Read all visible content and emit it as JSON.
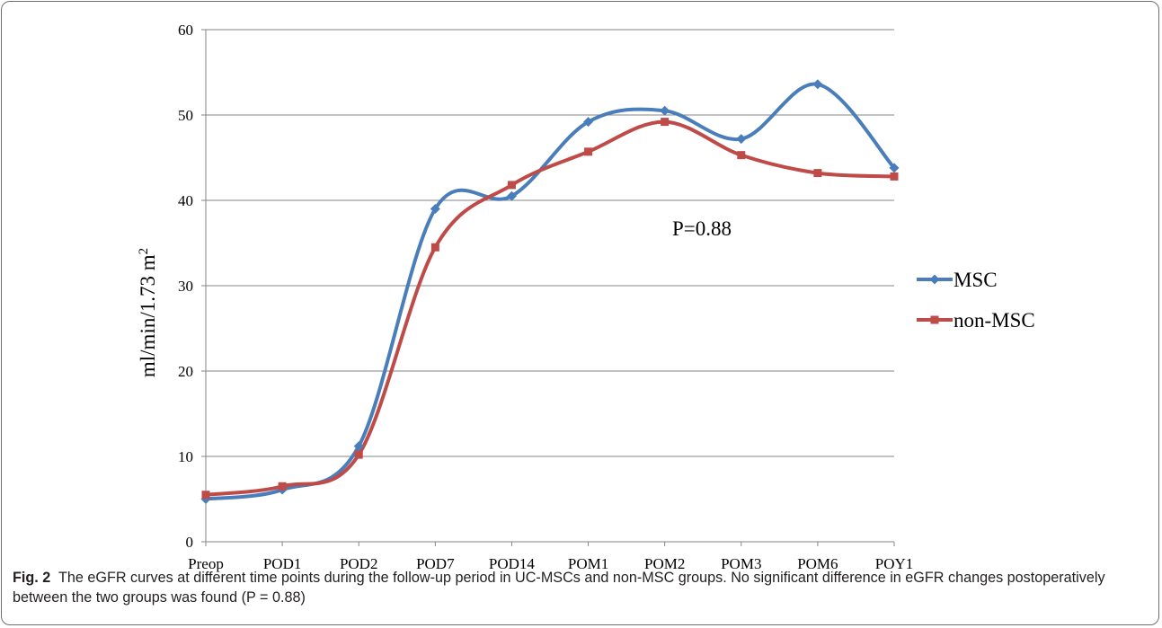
{
  "chart_data": {
    "type": "line",
    "categories": [
      "Preop",
      "POD1",
      "POD2",
      "POD7",
      "POD14",
      "POM1",
      "POM2",
      "POM3",
      "POM6",
      "POY1"
    ],
    "series": [
      {
        "name": "MSC",
        "values": [
          5.0,
          6.1,
          11.2,
          39.0,
          40.5,
          49.2,
          50.5,
          47.2,
          53.6,
          43.8
        ],
        "color": "#4a7ebb",
        "marker": "diamond"
      },
      {
        "name": "non-MSC",
        "values": [
          5.5,
          6.5,
          10.2,
          34.5,
          41.8,
          45.7,
          49.2,
          45.3,
          43.2,
          42.8
        ],
        "color": "#be4b48",
        "marker": "square"
      }
    ],
    "ylabel": "ml/min/1.73 m",
    "ylabel_superscript": "2",
    "ylim": [
      0,
      60
    ],
    "yticks": [
      0,
      10,
      20,
      30,
      40,
      50,
      60
    ],
    "grid": true,
    "legend_position": "right",
    "annotation": "P=0.88"
  },
  "caption": {
    "label": "Fig. 2",
    "text": "The eGFR curves at different time points during the follow-up period in UC-MSCs and non-MSC groups. No significant difference in eGFR changes postoperatively between the two groups was found (P = 0.88)"
  }
}
